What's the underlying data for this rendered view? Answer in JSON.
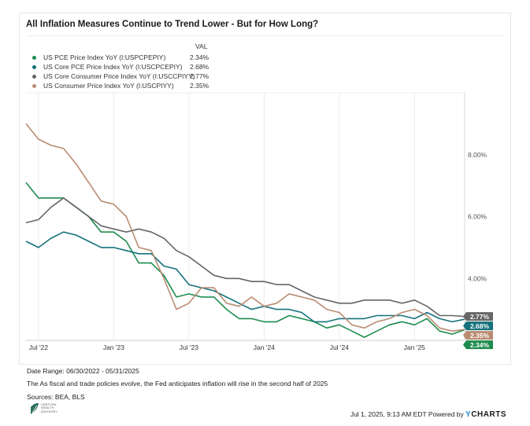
{
  "title": "All Inflation Measures Continue to Trend Lower - But for How Long?",
  "legend_header": "VAL",
  "footer": {
    "date_range": "Date Range: 06/30/2022 - 05/31/2025",
    "note": "The As fiscal and trade policies evolve, the Fed anticipates inflation will rise in the second half of 2025",
    "sources": "Sources: BEA, BLS",
    "logo_text": [
      "CENTURA",
      "WEALTH",
      "ADVISORY"
    ],
    "timestamp": "Jul 1, 2025, 9:13 AM EDT Powered by",
    "brand_y": "Y",
    "brand_rest": "CHARTS"
  },
  "chart_data": {
    "type": "line",
    "x": [
      "2022-06",
      "2022-07",
      "2022-08",
      "2022-09",
      "2022-10",
      "2022-11",
      "2022-12",
      "2023-01",
      "2023-02",
      "2023-03",
      "2023-04",
      "2023-05",
      "2023-06",
      "2023-07",
      "2023-08",
      "2023-09",
      "2023-10",
      "2023-11",
      "2023-12",
      "2024-01",
      "2024-02",
      "2024-03",
      "2024-04",
      "2024-05",
      "2024-06",
      "2024-07",
      "2024-08",
      "2024-09",
      "2024-10",
      "2024-11",
      "2024-12",
      "2025-01",
      "2025-02",
      "2025-03",
      "2025-04",
      "2025-05"
    ],
    "x_tick_labels": [
      "Jul '22",
      "Jan '23",
      "Jul '23",
      "Jan '24",
      "Jul '24",
      "Jan '25"
    ],
    "x_tick_dates": [
      "2022-07",
      "2023-01",
      "2023-07",
      "2024-01",
      "2024-07",
      "2025-01"
    ],
    "y_tick_labels": [
      "4.00%",
      "6.00%",
      "8.00%"
    ],
    "y_ticks": [
      4,
      6,
      8
    ],
    "ylim": [
      2.0,
      10.0
    ],
    "grid": "vertical",
    "legend_placement": "top-left",
    "series": [
      {
        "name": "US PCE Price Index YoY (I:USPCPEPIY)",
        "label": "2.34%",
        "last": 2.34,
        "color": "#1e8c4e",
        "values": [
          7.1,
          6.6,
          6.6,
          6.6,
          6.3,
          6.0,
          5.5,
          5.5,
          5.2,
          4.5,
          4.5,
          4.1,
          3.4,
          3.5,
          3.4,
          3.4,
          3.0,
          2.7,
          2.7,
          2.6,
          2.6,
          2.8,
          2.7,
          2.6,
          2.4,
          2.5,
          2.3,
          2.1,
          2.3,
          2.5,
          2.6,
          2.5,
          2.7,
          2.3,
          2.2,
          2.34
        ]
      },
      {
        "name": "US Core PCE Price Index YoY (I:USCPCEPIY)",
        "label": "2.68%",
        "last": 2.68,
        "color": "#16727c",
        "values": [
          5.2,
          5.0,
          5.3,
          5.5,
          5.4,
          5.2,
          5.0,
          5.0,
          4.9,
          4.8,
          4.8,
          4.4,
          4.3,
          3.8,
          3.7,
          3.6,
          3.4,
          3.2,
          3.0,
          3.1,
          3.0,
          3.0,
          2.9,
          2.6,
          2.6,
          2.7,
          2.7,
          2.7,
          2.8,
          2.8,
          2.8,
          2.7,
          2.9,
          2.7,
          2.6,
          2.68
        ]
      },
      {
        "name": "US Core Consumer Price Index YoY (I:USCCPIYY)",
        "label": "2.77%",
        "last": 2.77,
        "color": "#666666",
        "values": [
          5.8,
          5.9,
          6.3,
          6.6,
          6.3,
          6.0,
          5.7,
          5.6,
          5.5,
          5.6,
          5.5,
          5.3,
          4.9,
          4.7,
          4.4,
          4.1,
          4.0,
          4.0,
          3.9,
          3.9,
          3.8,
          3.8,
          3.6,
          3.4,
          3.3,
          3.2,
          3.2,
          3.3,
          3.3,
          3.3,
          3.2,
          3.3,
          3.1,
          2.8,
          2.8,
          2.77
        ]
      },
      {
        "name": "US Consumer Price Index YoY (I:USCPIYY)",
        "label": "2.35%",
        "last": 2.35,
        "color": "#b98c72",
        "values": [
          9.0,
          8.5,
          8.3,
          8.2,
          7.7,
          7.1,
          6.5,
          6.4,
          6.0,
          5.0,
          4.9,
          4.0,
          3.0,
          3.2,
          3.7,
          3.7,
          3.2,
          3.1,
          3.4,
          3.1,
          3.2,
          3.5,
          3.4,
          3.3,
          3.0,
          2.9,
          2.5,
          2.4,
          2.6,
          2.7,
          2.9,
          3.0,
          2.8,
          2.4,
          2.3,
          2.35
        ]
      }
    ]
  }
}
